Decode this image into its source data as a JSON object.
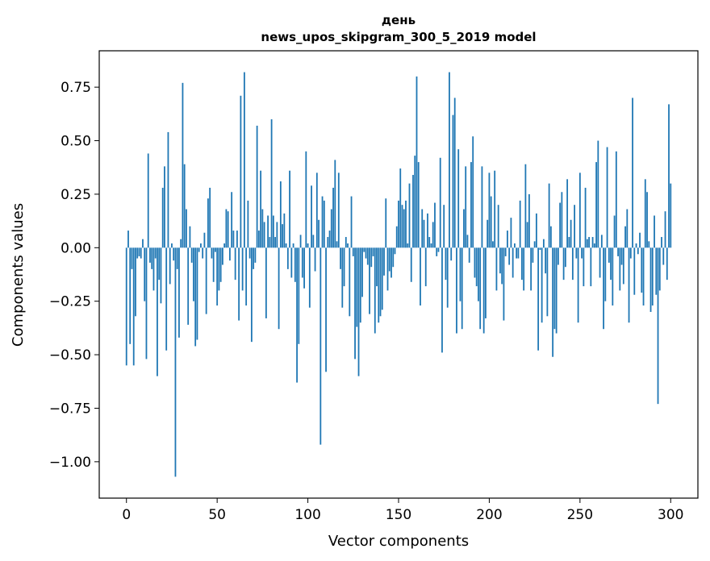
{
  "chart_data": {
    "type": "bar",
    "title_line1": "день",
    "title_line2": "news_upos_skipgram_300_5_2019 model",
    "xlabel": "Vector components",
    "ylabel": "Components values",
    "xlim": [
      -15,
      315
    ],
    "ylim": [
      -1.17,
      0.92
    ],
    "xticks": [
      0,
      50,
      100,
      150,
      200,
      250,
      300
    ],
    "xtick_labels": [
      "0",
      "50",
      "100",
      "150",
      "200",
      "250",
      "300"
    ],
    "yticks": [
      0.75,
      0.5,
      0.25,
      0.0,
      -0.25,
      -0.5,
      -0.75,
      -1.0
    ],
    "ytick_labels": [
      "0.75",
      "0.50",
      "0.25",
      "0.00",
      "−0.25",
      "−0.50",
      "−0.75",
      "−1.00"
    ],
    "bar_color": "#1f77b4",
    "values": [
      -0.55,
      0.08,
      -0.45,
      -0.1,
      -0.55,
      -0.32,
      -0.05,
      -0.04,
      -0.05,
      0.04,
      -0.25,
      -0.52,
      0.44,
      -0.07,
      -0.1,
      -0.2,
      -0.05,
      -0.6,
      -0.15,
      -0.26,
      0.28,
      0.38,
      -0.48,
      0.54,
      -0.17,
      0.02,
      -0.06,
      -1.07,
      -0.1,
      -0.42,
      0.04,
      0.77,
      0.39,
      0.18,
      -0.36,
      0.1,
      -0.07,
      -0.25,
      -0.46,
      -0.43,
      -0.02,
      0.02,
      -0.05,
      0.07,
      -0.31,
      0.23,
      0.28,
      -0.05,
      -0.16,
      -0.02,
      -0.27,
      -0.2,
      -0.16,
      -0.08,
      0.02,
      0.18,
      0.17,
      -0.06,
      0.26,
      0.08,
      -0.15,
      0.08,
      -0.34,
      0.71,
      -0.2,
      0.82,
      -0.27,
      0.22,
      -0.05,
      -0.44,
      -0.1,
      -0.07,
      0.57,
      0.08,
      0.36,
      0.18,
      0.12,
      -0.33,
      0.15,
      0.05,
      0.6,
      0.15,
      0.05,
      0.12,
      -0.38,
      0.31,
      0.11,
      0.16,
      0.02,
      -0.1,
      0.36,
      -0.14,
      0.02,
      -0.16,
      -0.63,
      -0.45,
      0.06,
      -0.14,
      -0.19,
      0.45,
      0.02,
      -0.28,
      0.29,
      0.06,
      -0.11,
      0.35,
      0.13,
      -0.92,
      0.24,
      0.22,
      -0.58,
      0.05,
      0.08,
      0.18,
      0.28,
      0.41,
      0.03,
      0.35,
      -0.1,
      -0.28,
      -0.18,
      0.05,
      0.02,
      -0.32,
      0.24,
      -0.04,
      -0.52,
      -0.37,
      -0.6,
      -0.35,
      -0.23,
      -0.02,
      -0.05,
      -0.08,
      -0.31,
      -0.09,
      -0.04,
      -0.4,
      -0.18,
      -0.35,
      -0.32,
      -0.29,
      -0.13,
      0.23,
      -0.2,
      -0.11,
      -0.14,
      -0.09,
      -0.03,
      0.1,
      0.22,
      0.37,
      0.2,
      0.18,
      0.22,
      0.02,
      0.3,
      -0.16,
      0.34,
      0.43,
      0.8,
      0.4,
      -0.27,
      0.18,
      0.13,
      -0.18,
      0.16,
      0.05,
      0.02,
      0.12,
      0.21,
      -0.04,
      -0.02,
      0.42,
      -0.49,
      0.2,
      -0.15,
      -0.28,
      0.82,
      -0.06,
      0.62,
      0.7,
      -0.4,
      0.46,
      -0.25,
      -0.38,
      0.18,
      0.38,
      0.06,
      -0.07,
      0.4,
      0.52,
      -0.14,
      -0.18,
      -0.25,
      -0.38,
      0.38,
      -0.4,
      -0.33,
      0.13,
      0.35,
      0.24,
      0.03,
      0.36,
      -0.2,
      0.2,
      -0.12,
      -0.17,
      -0.34,
      -0.04,
      0.08,
      -0.08,
      0.14,
      -0.14,
      0.02,
      -0.05,
      -0.05,
      0.22,
      -0.15,
      -0.2,
      0.39,
      0.12,
      0.25,
      -0.2,
      -0.07,
      0.03,
      0.16,
      -0.48,
      -0.01,
      -0.35,
      0.04,
      -0.12,
      -0.32,
      0.3,
      0.1,
      -0.51,
      -0.38,
      -0.4,
      -0.08,
      0.21,
      0.26,
      -0.15,
      -0.09,
      0.32,
      0.05,
      0.13,
      -0.15,
      0.2,
      -0.05,
      -0.35,
      0.35,
      -0.05,
      -0.18,
      0.28,
      0.04,
      0.05,
      -0.18,
      0.05,
      0.02,
      0.4,
      0.5,
      -0.14,
      0.06,
      -0.38,
      -0.25,
      0.47,
      -0.07,
      -0.15,
      -0.27,
      0.15,
      0.45,
      -0.04,
      -0.2,
      -0.08,
      -0.17,
      0.1,
      0.18,
      -0.35,
      -0.05,
      0.7,
      -0.22,
      0.02,
      -0.03,
      0.07,
      -0.21,
      -0.27,
      0.32,
      0.26,
      0.03,
      -0.3,
      -0.27,
      0.15,
      -0.22,
      -0.73,
      -0.2,
      0.05,
      -0.08,
      0.17,
      -0.15,
      0.67,
      0.3
    ]
  }
}
